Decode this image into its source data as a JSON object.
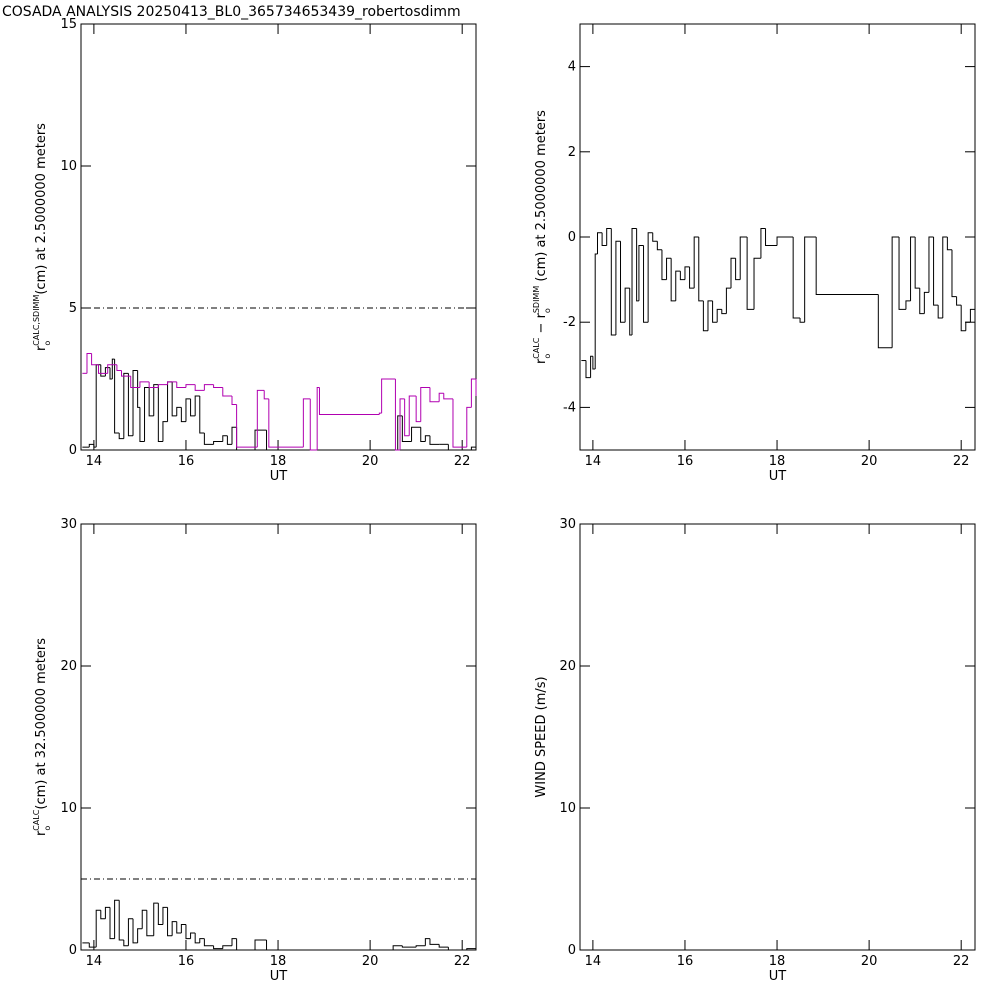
{
  "title": "COSADA ANALYSIS 20250413_BL0_365734653439_robertosdimm",
  "chart_data": [
    {
      "type": "line",
      "x_label": "UT",
      "y_label": [
        {
          "text": "r",
          "style": "normal"
        },
        {
          "text": "o",
          "style": "sub"
        },
        {
          "text": "CALC,SDIMM",
          "style": "sup"
        },
        {
          "text": "(cm)  at  2.5000000 meters",
          "style": "normal"
        }
      ],
      "xlim": [
        13.72,
        22.3
      ],
      "xticks": [
        14,
        16,
        18,
        20,
        22
      ],
      "ylim": [
        0,
        15
      ],
      "yticks": [
        0,
        5,
        10,
        15
      ],
      "reference_line": 5,
      "series": [
        {
          "color": "#000000",
          "x": [
            13.75,
            13.9,
            14.0,
            14.05,
            14.15,
            14.25,
            14.35,
            14.4,
            14.45,
            14.55,
            14.65,
            14.75,
            14.85,
            14.95,
            15.0,
            15.1,
            15.2,
            15.3,
            15.4,
            15.5,
            15.6,
            15.7,
            15.8,
            15.9,
            16.0,
            16.1,
            16.2,
            16.3,
            16.4,
            16.6,
            16.8,
            16.9,
            17.0,
            17.1,
            17.5,
            17.75,
            20.5,
            20.6,
            20.7,
            20.9,
            21.1,
            21.2,
            21.3,
            21.5,
            21.7,
            22.2,
            22.3
          ],
          "values": [
            0.1,
            0.2,
            0.1,
            3.0,
            2.6,
            2.9,
            2.5,
            3.2,
            0.6,
            0.4,
            2.7,
            0.5,
            2.8,
            1.5,
            0.3,
            2.2,
            1.2,
            2.3,
            0.3,
            1.0,
            2.4,
            1.2,
            1.5,
            1.0,
            1.8,
            1.2,
            1.9,
            0.6,
            0.2,
            0.3,
            0.5,
            0.2,
            0.8,
            0.0,
            0.7,
            0.0,
            0.0,
            1.2,
            0.3,
            0.8,
            0.3,
            0.5,
            0.2,
            0.2,
            0.0,
            0.1,
            0.3
          ]
        },
        {
          "color": "#b000b0",
          "x": [
            13.75,
            13.85,
            13.95,
            14.1,
            14.3,
            14.5,
            14.6,
            14.8,
            15.0,
            15.2,
            15.4,
            15.6,
            15.8,
            16.0,
            16.2,
            16.4,
            16.6,
            16.8,
            17.0,
            17.1,
            17.55,
            17.7,
            17.8,
            18.55,
            18.7,
            18.85,
            18.9,
            20.2,
            20.25,
            20.55,
            20.65,
            20.75,
            20.85,
            21.0,
            21.1,
            21.3,
            21.5,
            21.6,
            21.8,
            22.1,
            22.2,
            22.3
          ],
          "values": [
            2.7,
            3.4,
            3.0,
            2.7,
            3.0,
            2.8,
            2.6,
            2.2,
            2.4,
            2.2,
            2.3,
            2.4,
            2.2,
            2.3,
            2.1,
            2.3,
            2.2,
            1.9,
            1.6,
            0.1,
            2.1,
            1.8,
            0.1,
            1.8,
            0.0,
            2.2,
            1.25,
            1.3,
            2.5,
            0.0,
            1.8,
            0.5,
            1.9,
            1.0,
            2.2,
            1.7,
            2.0,
            1.8,
            0.1,
            1.5,
            2.5,
            1.9
          ]
        }
      ]
    },
    {
      "type": "line",
      "x_label": "UT",
      "y_label": [
        {
          "text": "r",
          "style": "normal"
        },
        {
          "text": "o",
          "style": "sub"
        },
        {
          "text": "CALC",
          "style": "sup"
        },
        {
          "text": " − r",
          "style": "normal"
        },
        {
          "text": "o",
          "style": "sub"
        },
        {
          "text": "SDIMM",
          "style": "sup"
        },
        {
          "text": " (cm) at 2.5000000 meters",
          "style": "normal"
        }
      ],
      "xlim": [
        13.72,
        22.3
      ],
      "xticks": [
        14,
        16,
        18,
        20,
        22
      ],
      "ylim": [
        -5,
        5
      ],
      "yticks": [
        -4,
        -2,
        0,
        2,
        4
      ],
      "series": [
        {
          "color": "#000000",
          "x": [
            13.75,
            13.85,
            13.95,
            14.0,
            14.05,
            14.1,
            14.2,
            14.3,
            14.4,
            14.5,
            14.6,
            14.7,
            14.8,
            14.85,
            14.95,
            15.0,
            15.1,
            15.2,
            15.3,
            15.4,
            15.5,
            15.6,
            15.7,
            15.8,
            15.9,
            16.0,
            16.1,
            16.2,
            16.3,
            16.4,
            16.5,
            16.6,
            16.7,
            16.8,
            16.9,
            17.0,
            17.1,
            17.2,
            17.35,
            17.5,
            17.65,
            17.75,
            18.0,
            18.35,
            18.5,
            18.6,
            18.85,
            20.2,
            20.5,
            20.65,
            20.8,
            20.9,
            21.0,
            21.1,
            21.2,
            21.3,
            21.4,
            21.5,
            21.6,
            21.7,
            21.8,
            21.9,
            22.0,
            22.1,
            22.2,
            22.3
          ],
          "values": [
            -2.9,
            -3.3,
            -2.8,
            -3.1,
            -0.4,
            0.1,
            -0.2,
            0.2,
            -2.3,
            -0.1,
            -2.0,
            -1.2,
            -2.3,
            0.2,
            -1.5,
            -0.2,
            -2.0,
            0.1,
            -0.1,
            -0.3,
            -1.0,
            -0.5,
            -1.5,
            -0.8,
            -1.0,
            -0.7,
            -1.2,
            0.0,
            -1.5,
            -2.2,
            -1.5,
            -2.0,
            -1.7,
            -1.8,
            -1.2,
            -0.5,
            -1.0,
            0.0,
            -1.7,
            -0.5,
            0.2,
            -0.2,
            0.0,
            -1.9,
            -2.0,
            0.0,
            -1.35,
            -2.6,
            0.0,
            -1.7,
            -1.5,
            0.0,
            -1.2,
            -1.8,
            -1.3,
            0.0,
            -1.6,
            -1.9,
            0.0,
            -0.3,
            -1.4,
            -1.6,
            -2.2,
            -2.0,
            -1.7,
            -1.4
          ]
        }
      ]
    },
    {
      "type": "line",
      "x_label": "UT",
      "y_label": [
        {
          "text": "r",
          "style": "normal"
        },
        {
          "text": "o",
          "style": "sub"
        },
        {
          "text": "CALC",
          "style": "sup"
        },
        {
          "text": "(cm) at 32.500000 meters",
          "style": "normal"
        }
      ],
      "xlim": [
        13.72,
        22.3
      ],
      "xticks": [
        14,
        16,
        18,
        20,
        22
      ],
      "ylim": [
        0,
        30
      ],
      "yticks": [
        0,
        10,
        20,
        30
      ],
      "reference_line": 5,
      "series": [
        {
          "color": "#000000",
          "x": [
            13.75,
            13.9,
            14.05,
            14.15,
            14.25,
            14.35,
            14.45,
            14.55,
            14.65,
            14.75,
            14.85,
            14.95,
            15.05,
            15.15,
            15.3,
            15.4,
            15.5,
            15.6,
            15.7,
            15.8,
            15.9,
            16.0,
            16.1,
            16.2,
            16.3,
            16.4,
            16.6,
            16.8,
            17.0,
            17.1,
            17.5,
            17.75,
            20.5,
            20.7,
            21.0,
            21.2,
            21.3,
            21.5,
            21.7,
            22.1,
            22.3
          ],
          "values": [
            0.5,
            0.2,
            2.8,
            2.2,
            3.0,
            0.8,
            3.5,
            0.7,
            0.3,
            2.2,
            0.5,
            1.5,
            2.8,
            1.0,
            3.3,
            1.8,
            3.0,
            1.0,
            2.0,
            1.2,
            1.8,
            0.8,
            1.2,
            0.5,
            0.8,
            0.3,
            0.1,
            0.3,
            0.8,
            0.0,
            0.7,
            0.0,
            0.3,
            0.2,
            0.3,
            0.8,
            0.4,
            0.2,
            0.0,
            0.1,
            0.2
          ]
        }
      ]
    },
    {
      "type": "line",
      "x_label": "UT",
      "y_label": [
        {
          "text": "WIND SPEED (m/s)",
          "style": "normal"
        }
      ],
      "xlim": [
        13.72,
        22.3
      ],
      "xticks": [
        14,
        16,
        18,
        20,
        22
      ],
      "ylim": [
        0,
        30
      ],
      "yticks": [
        0,
        10,
        20,
        30
      ],
      "series": []
    }
  ]
}
